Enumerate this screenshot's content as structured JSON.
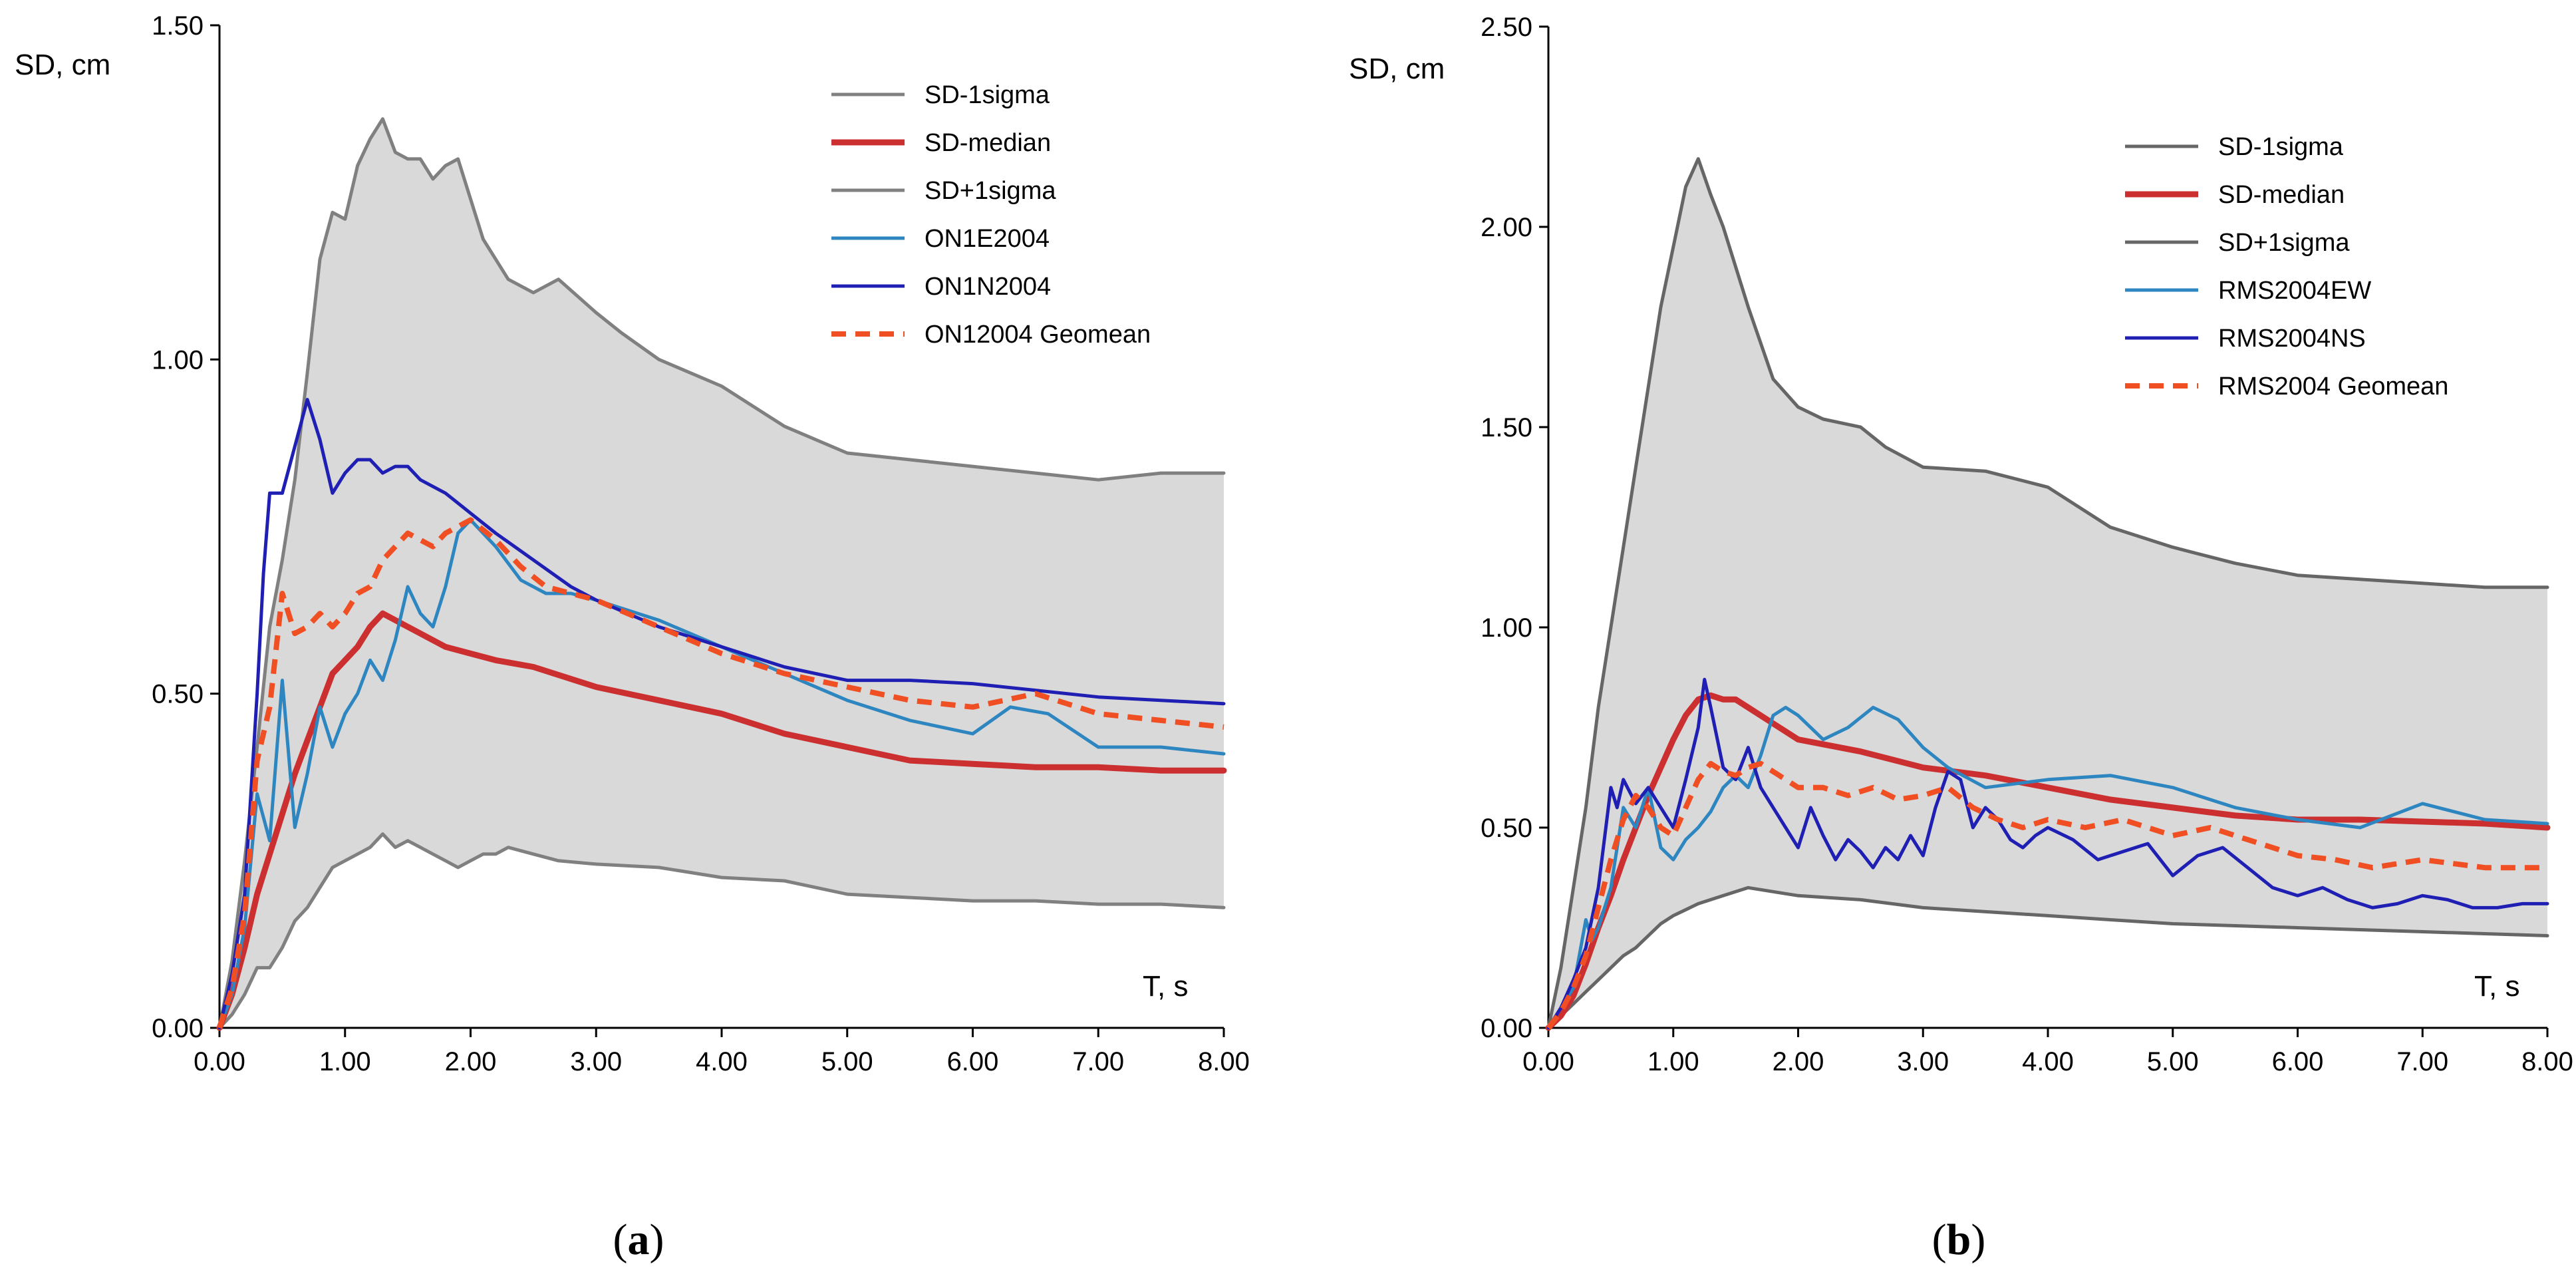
{
  "chart_data": [
    {
      "type": "line",
      "panel_label": "a",
      "xlabel": "T, s",
      "ylabel": "SD, cm",
      "xlim": [
        0,
        8
      ],
      "ylim": [
        0,
        1.5
      ],
      "xticks": [
        "0.00",
        "1.00",
        "2.00",
        "3.00",
        "4.00",
        "5.00",
        "6.00",
        "7.00",
        "8.00"
      ],
      "yticks": [
        "0.00",
        "0.50",
        "1.00",
        "1.50"
      ],
      "legend_position": "top-right",
      "shaded_band": {
        "lower": "SD-1sigma",
        "upper": "SD+1sigma",
        "color": "#d9d9d9"
      },
      "series": [
        {
          "name": "SD-1sigma",
          "color": "#808080",
          "style": "solid",
          "width": 5,
          "x": [
            0,
            0.1,
            0.2,
            0.3,
            0.4,
            0.5,
            0.6,
            0.7,
            0.8,
            0.9,
            1.0,
            1.1,
            1.2,
            1.3,
            1.4,
            1.5,
            1.6,
            1.7,
            1.8,
            1.9,
            2.0,
            2.1,
            2.2,
            2.3,
            2.5,
            2.7,
            3.0,
            3.5,
            4.0,
            4.5,
            5.0,
            5.5,
            6.0,
            6.5,
            7.0,
            7.5,
            8.0
          ],
          "y": [
            0,
            0.02,
            0.05,
            0.09,
            0.09,
            0.12,
            0.16,
            0.18,
            0.21,
            0.24,
            0.25,
            0.26,
            0.27,
            0.29,
            0.27,
            0.28,
            0.27,
            0.26,
            0.25,
            0.24,
            0.25,
            0.26,
            0.26,
            0.27,
            0.26,
            0.25,
            0.245,
            0.24,
            0.225,
            0.22,
            0.2,
            0.195,
            0.19,
            0.19,
            0.185,
            0.185,
            0.18
          ]
        },
        {
          "name": "SD-median",
          "color": "#cc2f2f",
          "style": "solid",
          "width": 9,
          "x": [
            0,
            0.1,
            0.2,
            0.3,
            0.4,
            0.5,
            0.6,
            0.7,
            0.8,
            0.9,
            1.0,
            1.1,
            1.2,
            1.3,
            1.4,
            1.5,
            1.6,
            1.8,
            2.0,
            2.2,
            2.5,
            3.0,
            3.5,
            4.0,
            4.5,
            5.0,
            5.5,
            6.0,
            6.5,
            7.0,
            7.5,
            8.0
          ],
          "y": [
            0,
            0.05,
            0.12,
            0.2,
            0.26,
            0.32,
            0.38,
            0.43,
            0.48,
            0.53,
            0.55,
            0.57,
            0.6,
            0.62,
            0.61,
            0.6,
            0.59,
            0.57,
            0.56,
            0.55,
            0.54,
            0.51,
            0.49,
            0.47,
            0.44,
            0.42,
            0.4,
            0.395,
            0.39,
            0.39,
            0.385,
            0.385
          ]
        },
        {
          "name": "SD+1sigma",
          "color": "#808080",
          "style": "solid",
          "width": 5,
          "x": [
            0,
            0.1,
            0.2,
            0.3,
            0.4,
            0.5,
            0.6,
            0.7,
            0.8,
            0.9,
            1.0,
            1.1,
            1.2,
            1.3,
            1.4,
            1.5,
            1.6,
            1.7,
            1.8,
            1.9,
            2.0,
            2.1,
            2.3,
            2.5,
            2.7,
            3.0,
            3.2,
            3.5,
            4.0,
            4.5,
            5.0,
            5.5,
            6.0,
            6.5,
            7.0,
            7.5,
            8.0
          ],
          "y": [
            0,
            0.1,
            0.25,
            0.42,
            0.6,
            0.7,
            0.82,
            0.98,
            1.15,
            1.22,
            1.21,
            1.29,
            1.33,
            1.36,
            1.31,
            1.3,
            1.3,
            1.27,
            1.29,
            1.3,
            1.24,
            1.18,
            1.12,
            1.1,
            1.12,
            1.07,
            1.04,
            1.0,
            0.96,
            0.9,
            0.86,
            0.85,
            0.84,
            0.83,
            0.82,
            0.83,
            0.83
          ]
        },
        {
          "name": "ON1E2004",
          "color": "#2e86c1",
          "style": "solid",
          "width": 5,
          "x": [
            0,
            0.1,
            0.2,
            0.3,
            0.4,
            0.5,
            0.6,
            0.7,
            0.8,
            0.9,
            1.0,
            1.1,
            1.2,
            1.3,
            1.4,
            1.5,
            1.6,
            1.7,
            1.8,
            1.9,
            2.0,
            2.2,
            2.4,
            2.6,
            2.8,
            3.0,
            3.5,
            4.0,
            4.5,
            5.0,
            5.5,
            6.0,
            6.3,
            6.6,
            7.0,
            7.5,
            8.0
          ],
          "y": [
            0,
            0.05,
            0.15,
            0.35,
            0.28,
            0.52,
            0.3,
            0.38,
            0.48,
            0.42,
            0.47,
            0.5,
            0.55,
            0.52,
            0.58,
            0.66,
            0.62,
            0.6,
            0.66,
            0.74,
            0.76,
            0.72,
            0.67,
            0.65,
            0.65,
            0.64,
            0.61,
            0.57,
            0.53,
            0.49,
            0.46,
            0.44,
            0.48,
            0.47,
            0.42,
            0.42,
            0.41
          ]
        },
        {
          "name": "ON1N2004",
          "color": "#1f1fb4",
          "style": "solid",
          "width": 5,
          "x": [
            0,
            0.1,
            0.2,
            0.3,
            0.35,
            0.4,
            0.45,
            0.5,
            0.6,
            0.7,
            0.8,
            0.9,
            1.0,
            1.1,
            1.2,
            1.3,
            1.4,
            1.5,
            1.6,
            1.8,
            2.0,
            2.2,
            2.5,
            2.8,
            3.0,
            3.5,
            4.0,
            4.5,
            5.0,
            5.5,
            6.0,
            6.5,
            7.0,
            7.5,
            8.0
          ],
          "y": [
            0,
            0.08,
            0.2,
            0.5,
            0.68,
            0.8,
            0.8,
            0.8,
            0.87,
            0.94,
            0.88,
            0.8,
            0.83,
            0.85,
            0.85,
            0.83,
            0.84,
            0.84,
            0.82,
            0.8,
            0.77,
            0.74,
            0.7,
            0.66,
            0.64,
            0.6,
            0.57,
            0.54,
            0.52,
            0.52,
            0.515,
            0.505,
            0.495,
            0.49,
            0.485
          ]
        },
        {
          "name": "ON12004 Geomean",
          "color": "#f04e23",
          "style": "dashed",
          "width": 8,
          "x": [
            0,
            0.1,
            0.2,
            0.3,
            0.4,
            0.5,
            0.6,
            0.7,
            0.8,
            0.9,
            1.0,
            1.1,
            1.2,
            1.3,
            1.4,
            1.5,
            1.6,
            1.7,
            1.8,
            1.9,
            2.0,
            2.2,
            2.4,
            2.6,
            2.8,
            3.0,
            3.5,
            4.0,
            4.5,
            5.0,
            5.5,
            6.0,
            6.5,
            7.0,
            7.5,
            8.0
          ],
          "y": [
            0,
            0.06,
            0.17,
            0.4,
            0.48,
            0.65,
            0.59,
            0.6,
            0.62,
            0.6,
            0.62,
            0.65,
            0.66,
            0.7,
            0.72,
            0.74,
            0.73,
            0.72,
            0.74,
            0.75,
            0.76,
            0.73,
            0.69,
            0.66,
            0.65,
            0.64,
            0.6,
            0.56,
            0.53,
            0.51,
            0.49,
            0.48,
            0.5,
            0.47,
            0.46,
            0.45
          ]
        }
      ]
    },
    {
      "type": "line",
      "panel_label": "b",
      "xlabel": "T, s",
      "ylabel": "SD, cm",
      "xlim": [
        0,
        8
      ],
      "ylim": [
        0,
        2.5
      ],
      "xticks": [
        "0.00",
        "1.00",
        "2.00",
        "3.00",
        "4.00",
        "5.00",
        "6.00",
        "7.00",
        "8.00"
      ],
      "yticks": [
        "0.00",
        "0.50",
        "1.00",
        "1.50",
        "2.00",
        "2.50"
      ],
      "legend_position": "top-right",
      "shaded_band": {
        "lower": "SD-1sigma",
        "upper": "SD+1sigma",
        "color": "#d9d9d9"
      },
      "series": [
        {
          "name": "SD-1sigma",
          "color": "#666666",
          "style": "solid",
          "width": 5,
          "x": [
            0,
            0.1,
            0.2,
            0.3,
            0.4,
            0.5,
            0.6,
            0.7,
            0.8,
            0.9,
            1.0,
            1.2,
            1.4,
            1.6,
            1.8,
            2.0,
            2.5,
            3.0,
            3.5,
            4.0,
            4.5,
            5.0,
            5.5,
            6.0,
            6.5,
            7.0,
            7.5,
            8.0
          ],
          "y": [
            0,
            0.03,
            0.06,
            0.09,
            0.12,
            0.15,
            0.18,
            0.2,
            0.23,
            0.26,
            0.28,
            0.31,
            0.33,
            0.35,
            0.34,
            0.33,
            0.32,
            0.3,
            0.29,
            0.28,
            0.27,
            0.26,
            0.255,
            0.25,
            0.245,
            0.24,
            0.235,
            0.23
          ]
        },
        {
          "name": "SD-median",
          "color": "#cc2f2f",
          "style": "solid",
          "width": 9,
          "x": [
            0,
            0.1,
            0.2,
            0.3,
            0.4,
            0.5,
            0.6,
            0.7,
            0.8,
            0.9,
            1.0,
            1.1,
            1.2,
            1.3,
            1.4,
            1.5,
            1.6,
            1.8,
            2.0,
            2.5,
            3.0,
            3.5,
            4.0,
            4.5,
            5.0,
            5.5,
            6.0,
            6.5,
            7.0,
            7.5,
            8.0
          ],
          "y": [
            0,
            0.03,
            0.08,
            0.16,
            0.25,
            0.33,
            0.42,
            0.5,
            0.58,
            0.65,
            0.72,
            0.78,
            0.82,
            0.83,
            0.82,
            0.82,
            0.8,
            0.76,
            0.72,
            0.69,
            0.65,
            0.63,
            0.6,
            0.57,
            0.55,
            0.53,
            0.52,
            0.52,
            0.515,
            0.51,
            0.5
          ]
        },
        {
          "name": "SD+1sigma",
          "color": "#666666",
          "style": "solid",
          "width": 5,
          "x": [
            0,
            0.1,
            0.2,
            0.3,
            0.4,
            0.5,
            0.6,
            0.7,
            0.8,
            0.9,
            1.0,
            1.1,
            1.2,
            1.3,
            1.4,
            1.5,
            1.6,
            1.8,
            2.0,
            2.2,
            2.5,
            2.7,
            3.0,
            3.5,
            4.0,
            4.5,
            5.0,
            5.5,
            6.0,
            6.5,
            7.0,
            7.5,
            8.0
          ],
          "y": [
            0,
            0.15,
            0.35,
            0.55,
            0.8,
            1.0,
            1.2,
            1.4,
            1.6,
            1.8,
            1.95,
            2.1,
            2.17,
            2.08,
            2.0,
            1.9,
            1.8,
            1.62,
            1.55,
            1.52,
            1.5,
            1.45,
            1.4,
            1.39,
            1.35,
            1.25,
            1.2,
            1.16,
            1.13,
            1.12,
            1.11,
            1.1,
            1.1
          ]
        },
        {
          "name": "RMS2004EW",
          "color": "#2e86c1",
          "style": "solid",
          "width": 5,
          "x": [
            0,
            0.1,
            0.2,
            0.3,
            0.35,
            0.4,
            0.5,
            0.6,
            0.7,
            0.8,
            0.9,
            1.0,
            1.1,
            1.2,
            1.3,
            1.4,
            1.5,
            1.6,
            1.7,
            1.8,
            1.9,
            2.0,
            2.2,
            2.4,
            2.6,
            2.8,
            3.0,
            3.2,
            3.5,
            4.0,
            4.5,
            5.0,
            5.5,
            6.0,
            6.5,
            7.0,
            7.5,
            8.0
          ],
          "y": [
            0,
            0.05,
            0.1,
            0.27,
            0.22,
            0.25,
            0.35,
            0.55,
            0.5,
            0.6,
            0.45,
            0.42,
            0.47,
            0.5,
            0.54,
            0.6,
            0.63,
            0.6,
            0.68,
            0.78,
            0.8,
            0.78,
            0.72,
            0.75,
            0.8,
            0.77,
            0.7,
            0.65,
            0.6,
            0.62,
            0.63,
            0.6,
            0.55,
            0.52,
            0.5,
            0.56,
            0.52,
            0.51
          ]
        },
        {
          "name": "RMS2004NS",
          "color": "#1f1fb4",
          "style": "solid",
          "width": 5,
          "x": [
            0,
            0.1,
            0.2,
            0.3,
            0.4,
            0.5,
            0.55,
            0.6,
            0.7,
            0.8,
            0.9,
            1.0,
            1.1,
            1.2,
            1.25,
            1.3,
            1.4,
            1.5,
            1.6,
            1.7,
            1.8,
            1.9,
            2.0,
            2.1,
            2.2,
            2.3,
            2.4,
            2.5,
            2.6,
            2.7,
            2.8,
            2.9,
            3.0,
            3.1,
            3.2,
            3.3,
            3.4,
            3.5,
            3.6,
            3.7,
            3.8,
            3.9,
            4.0,
            4.2,
            4.4,
            4.6,
            4.8,
            5.0,
            5.2,
            5.4,
            5.6,
            5.8,
            6.0,
            6.2,
            6.4,
            6.6,
            6.8,
            7.0,
            7.2,
            7.4,
            7.6,
            7.8,
            8.0
          ],
          "y": [
            0,
            0.05,
            0.12,
            0.2,
            0.35,
            0.6,
            0.55,
            0.62,
            0.56,
            0.6,
            0.55,
            0.5,
            0.62,
            0.75,
            0.87,
            0.8,
            0.65,
            0.62,
            0.7,
            0.6,
            0.55,
            0.5,
            0.45,
            0.55,
            0.48,
            0.42,
            0.47,
            0.44,
            0.4,
            0.45,
            0.42,
            0.48,
            0.43,
            0.55,
            0.64,
            0.62,
            0.5,
            0.55,
            0.52,
            0.47,
            0.45,
            0.48,
            0.5,
            0.47,
            0.42,
            0.44,
            0.46,
            0.38,
            0.43,
            0.45,
            0.4,
            0.35,
            0.33,
            0.35,
            0.32,
            0.3,
            0.31,
            0.33,
            0.32,
            0.3,
            0.3,
            0.31,
            0.31
          ]
        },
        {
          "name": "RMS2004 Geomean",
          "color": "#f04e23",
          "style": "dashed",
          "width": 8,
          "x": [
            0,
            0.1,
            0.2,
            0.3,
            0.4,
            0.5,
            0.6,
            0.7,
            0.8,
            0.9,
            1.0,
            1.1,
            1.2,
            1.3,
            1.4,
            1.5,
            1.6,
            1.7,
            1.8,
            2.0,
            2.2,
            2.4,
            2.6,
            2.8,
            3.0,
            3.2,
            3.4,
            3.6,
            3.8,
            4.0,
            4.3,
            4.6,
            5.0,
            5.3,
            5.6,
            6.0,
            6.3,
            6.6,
            7.0,
            7.5,
            8.0
          ],
          "y": [
            0,
            0.04,
            0.1,
            0.18,
            0.3,
            0.42,
            0.52,
            0.58,
            0.55,
            0.5,
            0.48,
            0.55,
            0.62,
            0.66,
            0.64,
            0.63,
            0.65,
            0.66,
            0.64,
            0.6,
            0.6,
            0.58,
            0.6,
            0.57,
            0.58,
            0.6,
            0.55,
            0.52,
            0.5,
            0.52,
            0.5,
            0.52,
            0.48,
            0.5,
            0.47,
            0.43,
            0.42,
            0.4,
            0.42,
            0.4,
            0.4
          ]
        }
      ]
    }
  ]
}
